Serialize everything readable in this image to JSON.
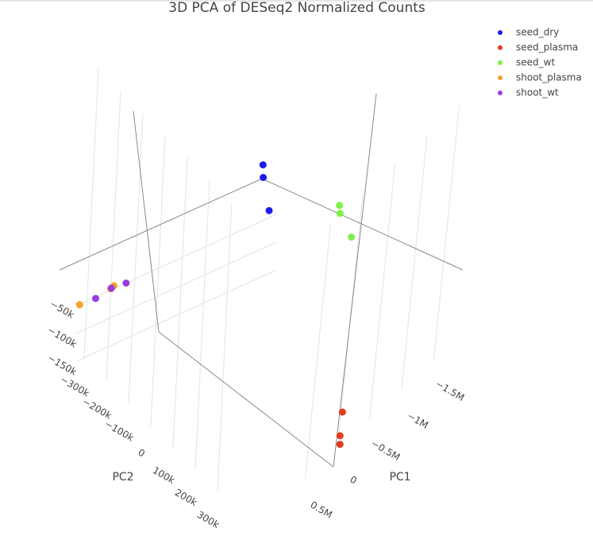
{
  "chart_data": {
    "type": "scatter3d",
    "title": "3D PCA of DESeq2 Normalized Counts",
    "xlabel": "PC1",
    "ylabel": "PC2",
    "series": [
      {
        "name": "seed_dry",
        "color": "#1c1ced",
        "x": [
          -120000,
          -20000,
          200000
        ],
        "y": [
          -30000,
          0,
          90000
        ],
        "z": [
          0,
          0,
          0
        ]
      },
      {
        "name": "seed_plasma",
        "color": "#e23b1f",
        "x": [
          -560000,
          -350000,
          -280000
        ],
        "y": [
          200000,
          250000,
          270000
        ],
        "z": [
          -400000,
          -400000,
          -400000
        ]
      },
      {
        "name": "seed_wt",
        "color": "#7ef04a",
        "x": [
          -410000,
          -350000,
          -250000
        ],
        "y": [
          230000,
          250000,
          330000
        ],
        "z": [
          0,
          0,
          0
        ]
      },
      {
        "name": "shoot_plasma",
        "color": "#f5a02a",
        "x": [
          2490000,
          2110000,
          2060000
        ],
        "y": [
          -100000,
          -70000,
          -70000
        ],
        "z": [
          0,
          0,
          0
        ]
      },
      {
        "name": "shoot_wt",
        "color": "#9b3de0",
        "x": [
          2310000,
          2100000,
          1940000
        ],
        "y": [
          -80000,
          -70000,
          -50000
        ],
        "z": [
          0,
          0,
          0
        ]
      }
    ],
    "xticks": [
      {
        "value": -1500000,
        "label": "−1.5M"
      },
      {
        "value": -1000000,
        "label": "−1M"
      },
      {
        "value": -500000,
        "label": "−0.5M"
      },
      0,
      {
        "value": 500000,
        "label": "0.5M"
      }
    ],
    "yticks": [
      {
        "value": -300000,
        "label": "−300k"
      },
      {
        "value": -200000,
        "label": "−200k"
      },
      {
        "value": -100000,
        "label": "−100k"
      },
      0,
      {
        "value": 100000,
        "label": "100k"
      },
      {
        "value": 200000,
        "label": "200k"
      },
      {
        "value": 300000,
        "label": "300k"
      }
    ],
    "zticks": [
      {
        "value": -150000,
        "label": "−150k"
      },
      {
        "value": -100000,
        "label": "−100k"
      },
      {
        "value": -50000,
        "label": "−50k"
      }
    ],
    "grid": true,
    "legend": "top-right"
  }
}
